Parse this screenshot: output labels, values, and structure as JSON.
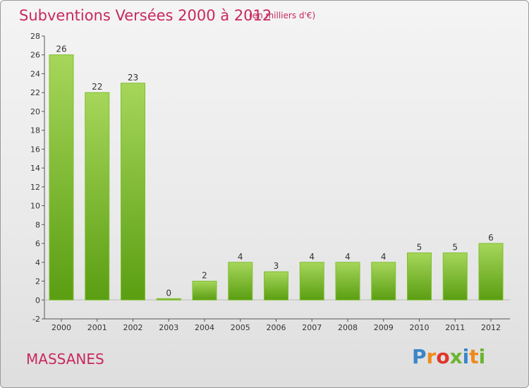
{
  "header": {
    "title": "Subventions Versées 2000 à 2012",
    "subtitle": "(en milliers d'€)"
  },
  "footer": {
    "commune": "MASSANES",
    "logo": [
      "P",
      "r",
      "o",
      "x",
      "i",
      "t",
      "i"
    ]
  },
  "colors": {
    "title": "#c8285e",
    "bar_light": "#a6d65a",
    "bar_dark": "#5a9e12",
    "logo": [
      "#3a86c8",
      "#f08a1c",
      "#e0352b",
      "#6bb530",
      "#3a86c8",
      "#f08a1c",
      "#6bb530"
    ]
  },
  "chart_data": {
    "type": "bar",
    "categories": [
      "2000",
      "2001",
      "2002",
      "2003",
      "2004",
      "2005",
      "2006",
      "2007",
      "2008",
      "2009",
      "2010",
      "2011",
      "2012"
    ],
    "values": [
      26,
      22,
      23,
      0,
      2,
      4,
      3,
      4,
      4,
      4,
      5,
      5,
      6
    ],
    "data_labels": [
      "26",
      "22",
      "23",
      "0",
      "2",
      "4",
      "3",
      "4",
      "4",
      "4",
      "5",
      "5",
      "6"
    ],
    "yticks": [
      "-2",
      "0",
      "2",
      "4",
      "6",
      "8",
      "10",
      "12",
      "14",
      "16",
      "18",
      "20",
      "22",
      "24",
      "26",
      "28"
    ],
    "ylim": [
      -2,
      28
    ],
    "grid": false
  }
}
